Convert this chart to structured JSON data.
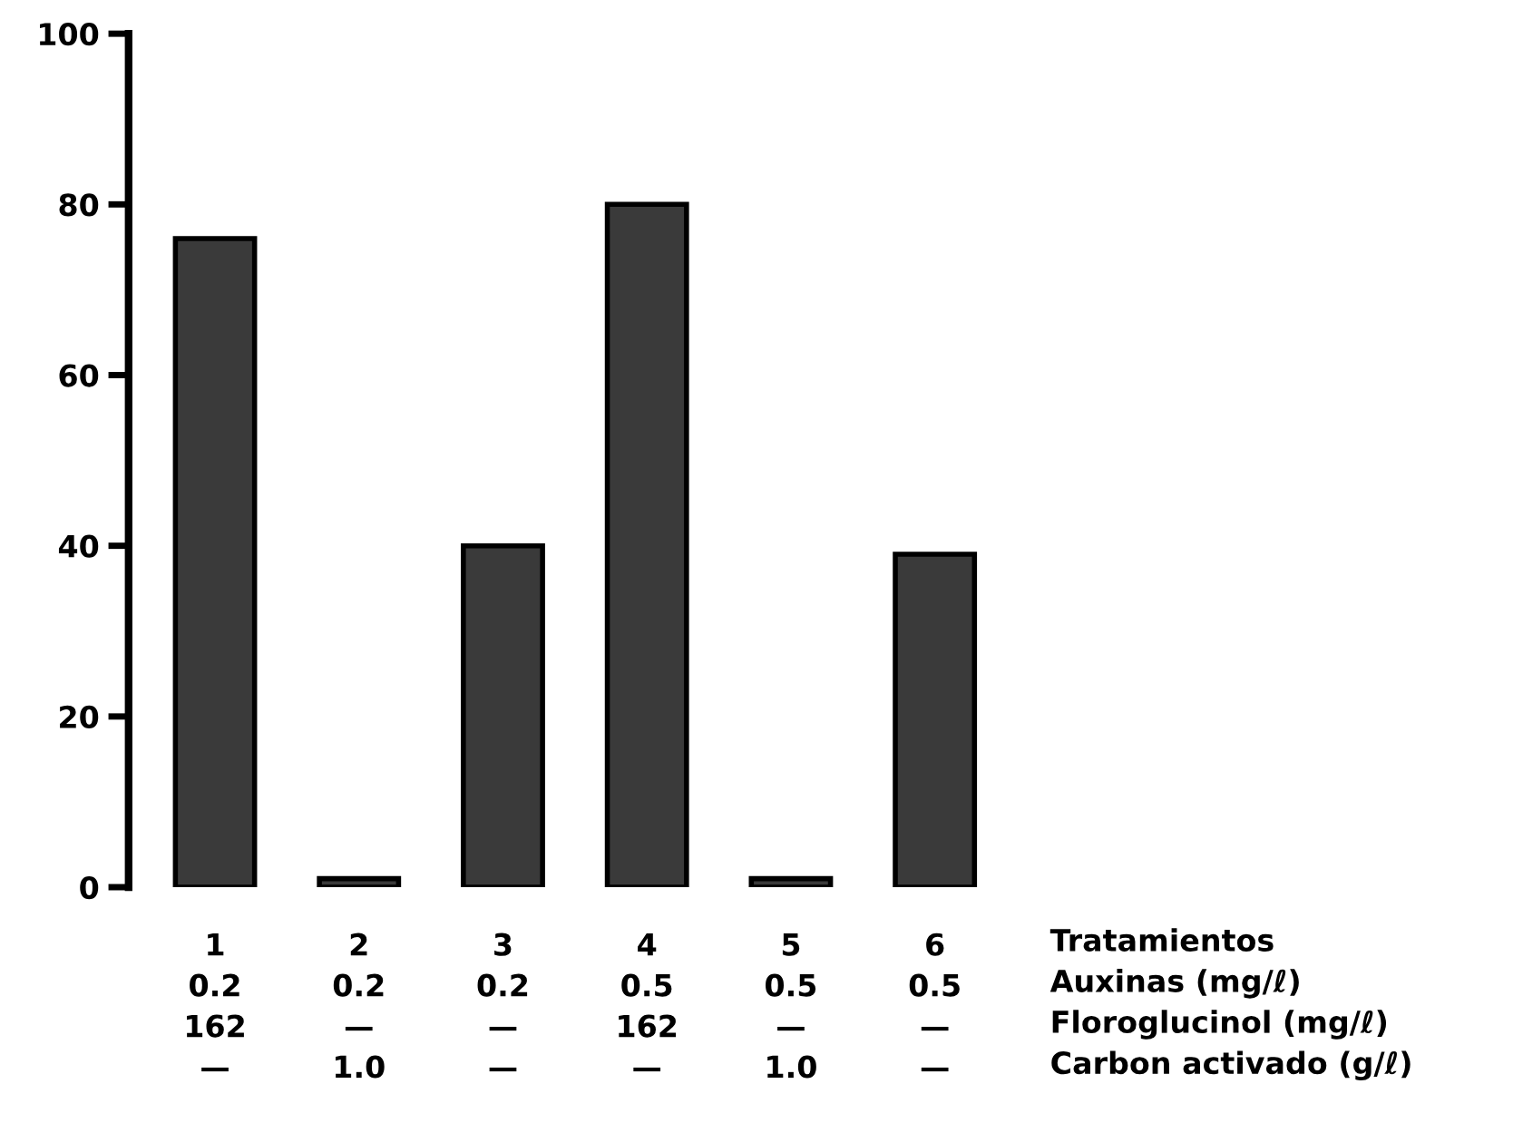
{
  "chart_data": {
    "type": "bar",
    "categories": [
      "1\n0.2\n162\n—",
      "2\n0.2\n—\n1.0",
      "3\n0.2\n—\n—",
      "4\n0.5\n162\n—",
      "5\n0.5\n—\n1.0",
      "6\n0.5\n—\n—"
    ],
    "values": [
      76,
      1,
      40,
      80,
      1,
      39
    ],
    "color": "#3a3a3a",
    "xlabel": "Tratamientos\nAuxinas (mg/ℓ)\nFloroglucinol (mg/ℓ)\nCarbon activado (g/ℓ)",
    "ylim": [
      0,
      100
    ],
    "yticks": [
      0,
      20,
      40,
      60,
      80,
      100
    ],
    "grid": false
  }
}
